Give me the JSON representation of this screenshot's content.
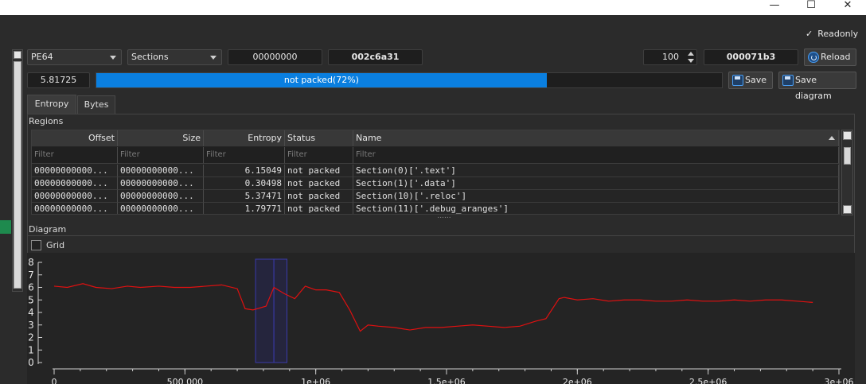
{
  "window": {
    "minimize_glyph": "—",
    "maximize_glyph": "☐",
    "close_glyph": "✕"
  },
  "readonly": {
    "check_glyph": "✓",
    "label": "Readonly",
    "checked": true
  },
  "toolbar": {
    "file_type": "PE64",
    "view_mode": "Sections",
    "offset": "00000000",
    "size": "002c6a31",
    "count": "100",
    "block_size": "000071b3",
    "reload_label": "Reload"
  },
  "entropy": {
    "value": "5.81725",
    "progress_label": "not packed(72%)",
    "progress_fraction": 0.72,
    "save_label": "Save",
    "save_diagram_label": "Save diagram"
  },
  "tabs": [
    {
      "label": "Entropy",
      "active": true
    },
    {
      "label": "Bytes",
      "active": false
    }
  ],
  "regions": {
    "label": "Regions",
    "columns": [
      "Offset",
      "Size",
      "Entropy",
      "Status",
      "Name"
    ],
    "filter_placeholder": "Filter",
    "rows": [
      {
        "offset": "00000000000...",
        "size": "00000000000...",
        "entropy": "6.15049",
        "status": "not packed",
        "name": "Section(0)['.text']"
      },
      {
        "offset": "00000000000...",
        "size": "00000000000...",
        "entropy": "0.30498",
        "status": "not packed",
        "name": "Section(1)['.data']"
      },
      {
        "offset": "00000000000...",
        "size": "00000000000...",
        "entropy": "5.37471",
        "status": "not packed",
        "name": "Section(10)['.reloc']"
      },
      {
        "offset": "00000000000...",
        "size": "00000000000...",
        "entropy": "1.79771",
        "status": "not packed",
        "name": "Section(11)['.debug_aranges']"
      }
    ],
    "splitter_glyph": "......"
  },
  "diagram": {
    "label": "Diagram",
    "grid_label": "Grid",
    "grid_checked": false
  },
  "chart_data": {
    "type": "line",
    "ylim": [
      0,
      8
    ],
    "xlim": [
      0,
      3000000
    ],
    "y_ticks": [
      "0",
      "1",
      "2",
      "3",
      "4",
      "5",
      "6",
      "7",
      "8"
    ],
    "x_ticks": [
      {
        "value": 0,
        "label": "0"
      },
      {
        "value": 500000,
        "label": "500 000"
      },
      {
        "value": 1000000,
        "label": "1e+06"
      },
      {
        "value": 1500000,
        "label": "1.5e+06"
      },
      {
        "value": 2000000,
        "label": "2e+06"
      },
      {
        "value": 2500000,
        "label": "2.5e+06"
      },
      {
        "value": 3000000,
        "label": "3e+06"
      }
    ],
    "line_color": "#e01010",
    "highlight_color": "#3a3aaa",
    "highlight_regions": [
      {
        "start": 770000,
        "end": 840000
      },
      {
        "start": 840000,
        "end": 890000
      }
    ],
    "series": [
      {
        "x": [
          0,
          50000,
          110000,
          160000,
          220000,
          280000,
          330000,
          400000,
          460000,
          520000,
          580000,
          640000,
          700000,
          730000,
          760000,
          810000,
          840000,
          880000,
          920000,
          960000,
          1000000,
          1040000,
          1090000,
          1130000,
          1170000,
          1200000,
          1240000,
          1300000,
          1360000,
          1420000,
          1480000,
          1540000,
          1600000,
          1660000,
          1720000,
          1780000,
          1840000,
          1880000,
          1930000,
          1950000,
          2000000,
          2060000,
          2120000,
          2180000,
          2240000,
          2300000,
          2360000,
          2420000,
          2480000,
          2540000,
          2600000,
          2660000,
          2720000,
          2780000,
          2840000,
          2900000
        ],
        "y": [
          6.1,
          6.0,
          6.3,
          6.0,
          5.9,
          6.1,
          6.0,
          6.1,
          6.0,
          6.0,
          6.1,
          6.2,
          5.9,
          4.3,
          4.2,
          4.5,
          6.0,
          5.5,
          5.1,
          6.1,
          5.8,
          5.8,
          5.6,
          4.2,
          2.5,
          3.0,
          2.9,
          2.8,
          2.6,
          2.8,
          2.8,
          2.9,
          3.0,
          2.9,
          2.8,
          2.9,
          3.3,
          3.5,
          5.1,
          5.2,
          5.0,
          5.1,
          4.9,
          5.0,
          5.0,
          4.9,
          4.9,
          5.0,
          4.9,
          4.9,
          5.0,
          4.9,
          5.0,
          5.0,
          4.9,
          4.8
        ]
      }
    ]
  }
}
